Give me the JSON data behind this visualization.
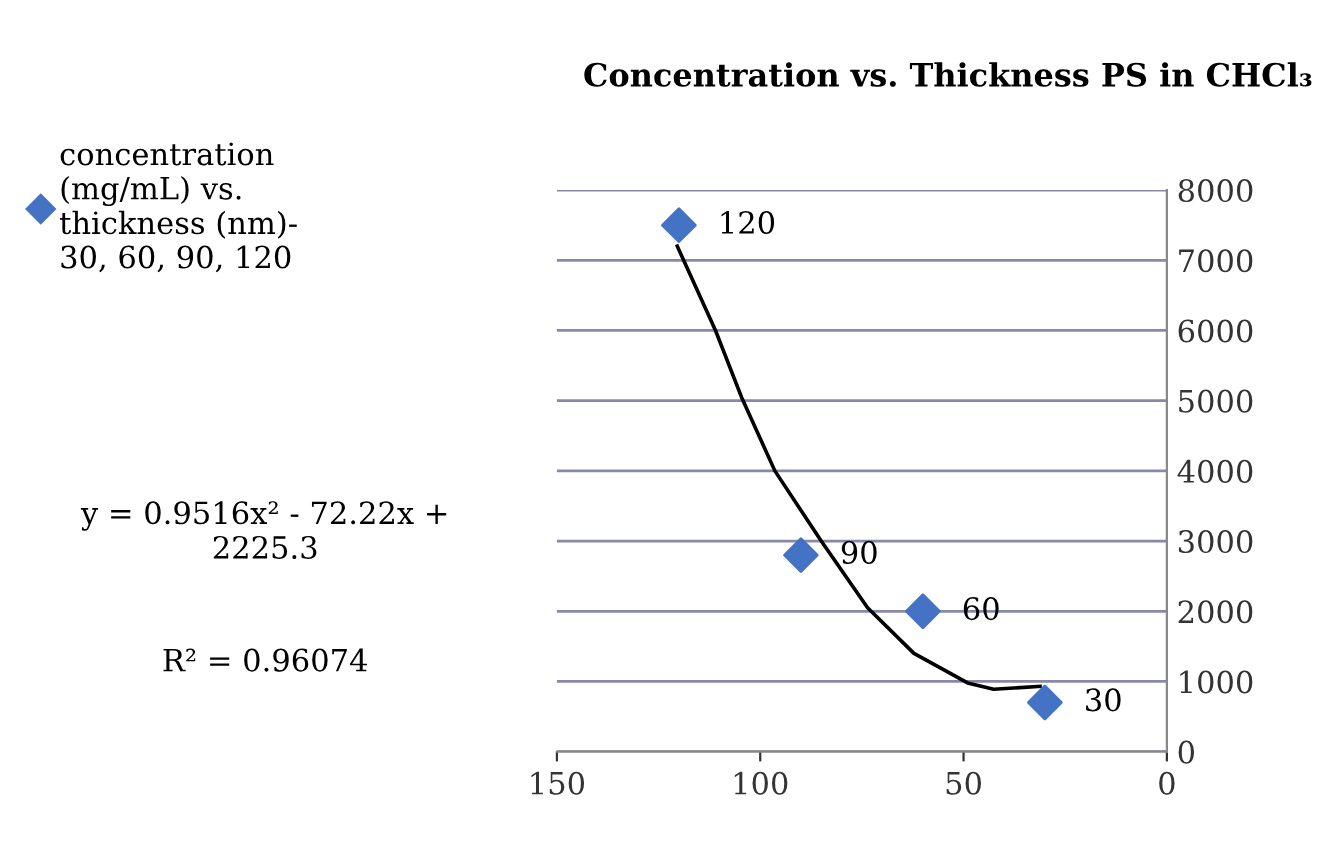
{
  "chart_data": {
    "type": "scatter",
    "title": "Concentration vs. Thickness PS in CHCl₃",
    "x": [
      120,
      90,
      60,
      30
    ],
    "series": [
      {
        "name": "concentration (mg/mL) vs. thickness (nm)- 30, 60, 90, 120",
        "color": "#4472c4",
        "values": [
          7500,
          2800,
          2000,
          700
        ],
        "marker": "diamond"
      },
      {
        "type": "line",
        "color": "#000000",
        "x": [
          120.4,
          111,
          104.6,
          96.4,
          85,
          73.6,
          62.2,
          49,
          42.6,
          31.2
        ],
        "values": [
          7200,
          6000,
          5050,
          4000,
          3000,
          2050,
          1400,
          980,
          890,
          930
        ],
        "marker": "none",
        "line_style": "solid"
      }
    ],
    "xlim": [
      150,
      0
    ],
    "xticks": [
      150,
      100,
      50,
      0
    ],
    "ylim": [
      0,
      8000
    ],
    "yticks": [
      0,
      1000,
      2000,
      3000,
      4000,
      5000,
      6000,
      7000,
      8000
    ],
    "grid": "y",
    "legend": "left",
    "annotations": [
      {
        "text": "120",
        "x": 120,
        "y": 7500
      },
      {
        "text": "90",
        "x": 90,
        "y": 2800
      },
      {
        "text": "60",
        "x": 60,
        "y": 2000
      },
      {
        "text": "30",
        "x": 30,
        "y": 700
      },
      "y = 0.9516x² - 72.22x + 2225.3",
      "R² = 0.96074"
    ]
  }
}
